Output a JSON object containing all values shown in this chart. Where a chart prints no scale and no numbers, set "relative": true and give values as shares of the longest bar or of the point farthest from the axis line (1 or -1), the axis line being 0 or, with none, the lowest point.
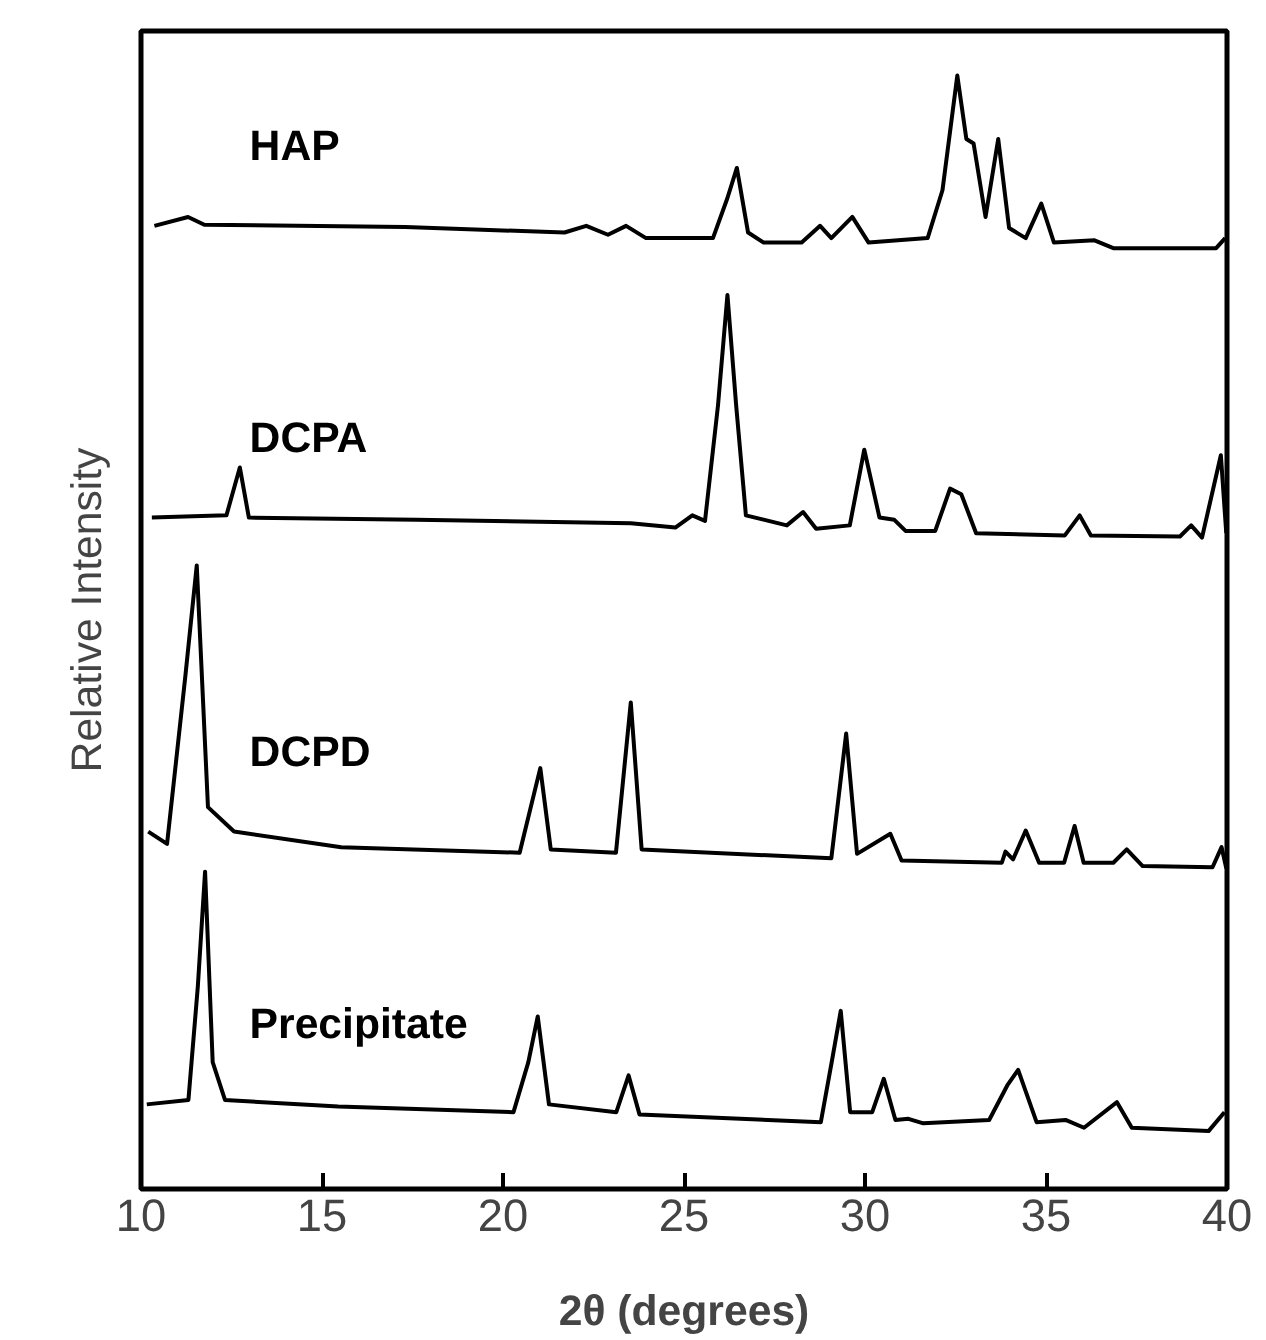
{
  "chart_data": {
    "type": "line",
    "xlabel": "2θ (degrees)",
    "ylabel": "Relative Intensity",
    "relative": true,
    "xlim": [
      10,
      40
    ],
    "xticks": [
      10,
      15,
      20,
      25,
      30,
      35,
      40
    ],
    "grid": false,
    "legend": false,
    "line_style": "solid",
    "series": [
      {
        "name": "HAP",
        "color": "#000000",
        "x": [
          10.37,
          11.3,
          11.75,
          17.3,
          21.7,
          22.3,
          22.9,
          23.4,
          23.95,
          25.8,
          26.2,
          26.46,
          26.77,
          27.2,
          28.25,
          28.76,
          29.07,
          29.65,
          30.1,
          31.73,
          32.14,
          32.55,
          32.8,
          33.0,
          33.33,
          33.68,
          33.98,
          34.44,
          34.87,
          35.22,
          36.34,
          36.86,
          39.7,
          39.95
        ],
        "values": [
          0.865,
          0.873,
          0.866,
          0.864,
          0.859,
          0.865,
          0.857,
          0.865,
          0.854,
          0.854,
          0.89,
          0.917,
          0.859,
          0.85,
          0.85,
          0.865,
          0.854,
          0.873,
          0.85,
          0.854,
          0.897,
          1.0,
          0.943,
          0.939,
          0.873,
          0.943,
          0.863,
          0.854,
          0.885,
          0.85,
          0.852,
          0.845,
          0.845,
          0.854
        ]
      },
      {
        "name": "DCPA",
        "color": "#000000",
        "x": [
          10.3,
          12.36,
          12.73,
          12.98,
          17.6,
          23.53,
          24.76,
          25.23,
          25.58,
          25.94,
          26.2,
          26.44,
          26.71,
          27.84,
          28.29,
          28.65,
          29.58,
          29.98,
          30.4,
          30.81,
          31.12,
          31.94,
          32.35,
          32.66,
          33.07,
          35.52,
          35.93,
          36.24,
          38.7,
          39.01,
          39.31,
          39.83,
          39.98
        ],
        "values": [
          0.603,
          0.605,
          0.648,
          0.603,
          0.601,
          0.598,
          0.594,
          0.605,
          0.6,
          0.704,
          0.803,
          0.704,
          0.605,
          0.596,
          0.608,
          0.593,
          0.596,
          0.664,
          0.603,
          0.601,
          0.591,
          0.591,
          0.629,
          0.624,
          0.589,
          0.587,
          0.605,
          0.587,
          0.586,
          0.596,
          0.585,
          0.659,
          0.589
        ]
      },
      {
        "name": "DCPD",
        "color": "#000000",
        "x": [
          10.2,
          10.72,
          11.23,
          11.54,
          11.85,
          12.57,
          15.53,
          20.46,
          21.03,
          21.32,
          23.12,
          23.53,
          23.83,
          29.07,
          29.48,
          29.78,
          30.7,
          31.01,
          33.78,
          33.88,
          34.09,
          34.44,
          34.81,
          35.5,
          35.79,
          36.04,
          36.86,
          37.23,
          37.67,
          39.6,
          39.85,
          39.98
        ],
        "values": [
          0.321,
          0.31,
          0.462,
          0.56,
          0.343,
          0.321,
          0.307,
          0.302,
          0.378,
          0.305,
          0.302,
          0.437,
          0.305,
          0.297,
          0.409,
          0.301,
          0.319,
          0.295,
          0.293,
          0.303,
          0.296,
          0.322,
          0.293,
          0.293,
          0.326,
          0.293,
          0.293,
          0.305,
          0.29,
          0.289,
          0.307,
          0.288
        ]
      },
      {
        "name": "Precipitate",
        "color": "#000000",
        "x": [
          10.16,
          11.31,
          11.57,
          11.77,
          11.98,
          12.32,
          15.45,
          20.29,
          20.7,
          20.96,
          21.27,
          23.13,
          23.47,
          23.77,
          28.78,
          29.08,
          29.33,
          29.59,
          30.2,
          30.52,
          30.84,
          31.2,
          31.61,
          33.43,
          33.93,
          34.23,
          34.74,
          35.54,
          36.05,
          36.96,
          37.37,
          39.49,
          39.93
        ],
        "values": [
          0.076,
          0.08,
          0.182,
          0.285,
          0.114,
          0.08,
          0.074,
          0.069,
          0.114,
          0.155,
          0.076,
          0.069,
          0.102,
          0.067,
          0.06,
          0.114,
          0.16,
          0.069,
          0.069,
          0.099,
          0.062,
          0.063,
          0.059,
          0.062,
          0.093,
          0.107,
          0.06,
          0.062,
          0.055,
          0.078,
          0.055,
          0.052,
          0.069
        ]
      }
    ]
  }
}
